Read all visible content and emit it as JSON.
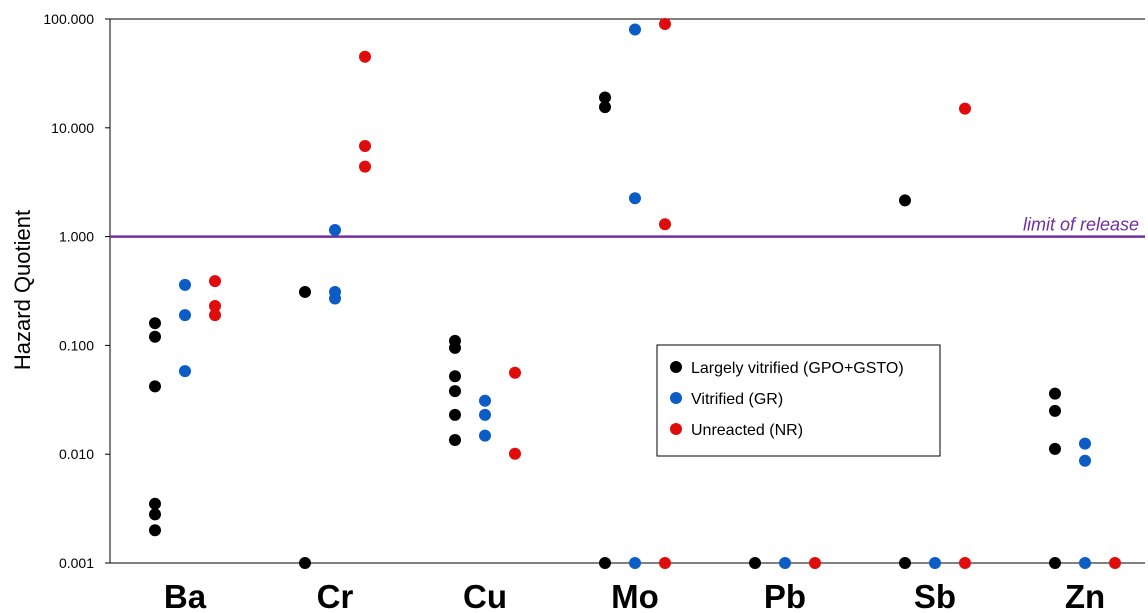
{
  "chart_data": {
    "type": "scatter",
    "title": "",
    "xlabel": "",
    "ylabel": "Hazard Quotient",
    "y_scale": "log",
    "ylim": [
      0.001,
      100
    ],
    "yticks": [
      "0.001",
      "0.010",
      "0.100",
      "1.000",
      "10.000",
      "100.000"
    ],
    "ytick_values": [
      0.001,
      0.01,
      0.1,
      1,
      10,
      100
    ],
    "categories": [
      "Ba",
      "Cr",
      "Cu",
      "Mo",
      "Pb",
      "Sb",
      "Zn"
    ],
    "grid": false,
    "legend_position": "center-right",
    "reference_line": {
      "y": 1,
      "label": "limit of release",
      "color": "#7030A0"
    },
    "series": [
      {
        "name": "Largely vitrified (GPO+GSTO)",
        "color": "#000000",
        "points": {
          "Ba": [
            0.16,
            0.12,
            0.042,
            0.0035,
            0.0028,
            0.002
          ],
          "Cr": [
            0.31,
            0.001
          ],
          "Cu": [
            0.11,
            0.095,
            0.052,
            0.038,
            0.023,
            0.0135
          ],
          "Mo": [
            19,
            15.5,
            0.001
          ],
          "Pb": [
            0.001
          ],
          "Sb": [
            2.15,
            0.001
          ],
          "Zn": [
            0.036,
            0.025,
            0.0112,
            0.001
          ]
        }
      },
      {
        "name": "Vitrified (GR)",
        "color": "#0B5CC4",
        "points": {
          "Ba": [
            0.36,
            0.19,
            0.058
          ],
          "Cr": [
            1.15,
            0.31,
            0.27
          ],
          "Cu": [
            0.031,
            0.023,
            0.0148
          ],
          "Mo": [
            80,
            2.25,
            0.001
          ],
          "Pb": [
            0.001
          ],
          "Sb": [
            0.001
          ],
          "Zn": [
            0.0125,
            0.0087,
            0.001
          ]
        }
      },
      {
        "name": "Unreacted (NR)",
        "color": "#E00B0B",
        "points": {
          "Ba": [
            0.39,
            0.23,
            0.19
          ],
          "Cr": [
            45,
            6.8,
            4.4
          ],
          "Cu": [
            0.056,
            0.0101
          ],
          "Mo": [
            90,
            1.3,
            0.001
          ],
          "Pb": [
            0.001
          ],
          "Sb": [
            15,
            0.001
          ],
          "Zn": [
            0.001
          ]
        }
      }
    ]
  }
}
